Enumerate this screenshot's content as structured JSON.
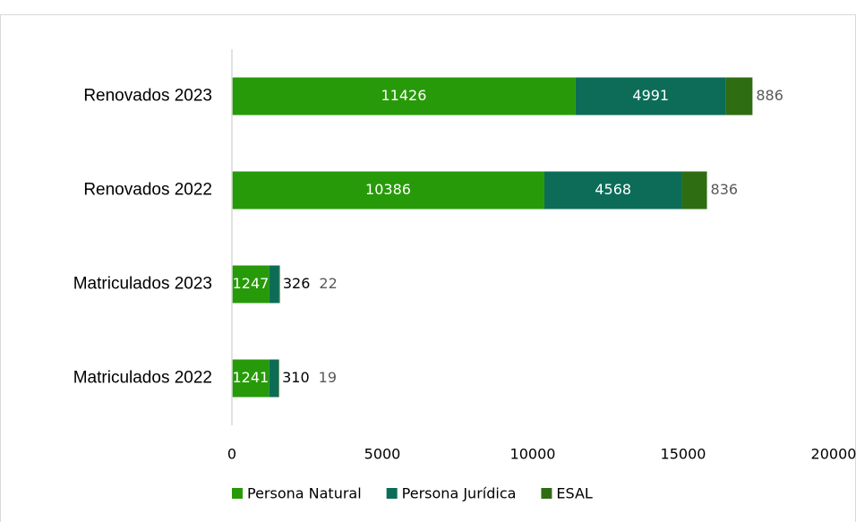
{
  "chart_data": {
    "type": "stacked-bar-horizontal",
    "categories": [
      "Renovados 2023",
      "Renovados 2022",
      "Matriculados 2023",
      "Matriculados 2022"
    ],
    "series": [
      {
        "name": "Persona Natural",
        "color": "#279a09",
        "values": [
          11426,
          10386,
          1247,
          1241
        ]
      },
      {
        "name": "Persona Jurídica",
        "color": "#0c6c58",
        "values": [
          4991,
          4568,
          326,
          310
        ]
      },
      {
        "name": "ESAL",
        "color": "#2e6d12",
        "values": [
          886,
          836,
          22,
          19
        ]
      }
    ],
    "xlim": [
      0,
      20000
    ],
    "xticks": [
      0,
      5000,
      10000,
      15000,
      20000
    ],
    "legend": "bottom"
  }
}
